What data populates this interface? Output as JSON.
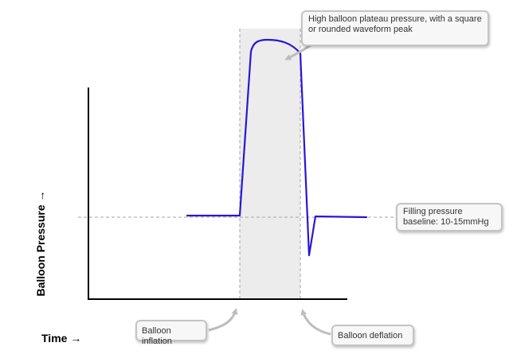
{
  "axes": {
    "y_label": "Balloon Pressure →",
    "x_label": "Time →"
  },
  "callouts": {
    "plateau": "High balloon plateau pressure, with a square or rounded waveform peak",
    "baseline": "Filling pressure baseline: 10-15mmHg",
    "inflation": "Balloon inflation",
    "deflation": "Balloon deflation"
  },
  "colors": {
    "waveform": "#2a16d6",
    "shade": "#ececec",
    "guide": "#a6a6a6",
    "arrow": "#bdbdbd"
  }
}
